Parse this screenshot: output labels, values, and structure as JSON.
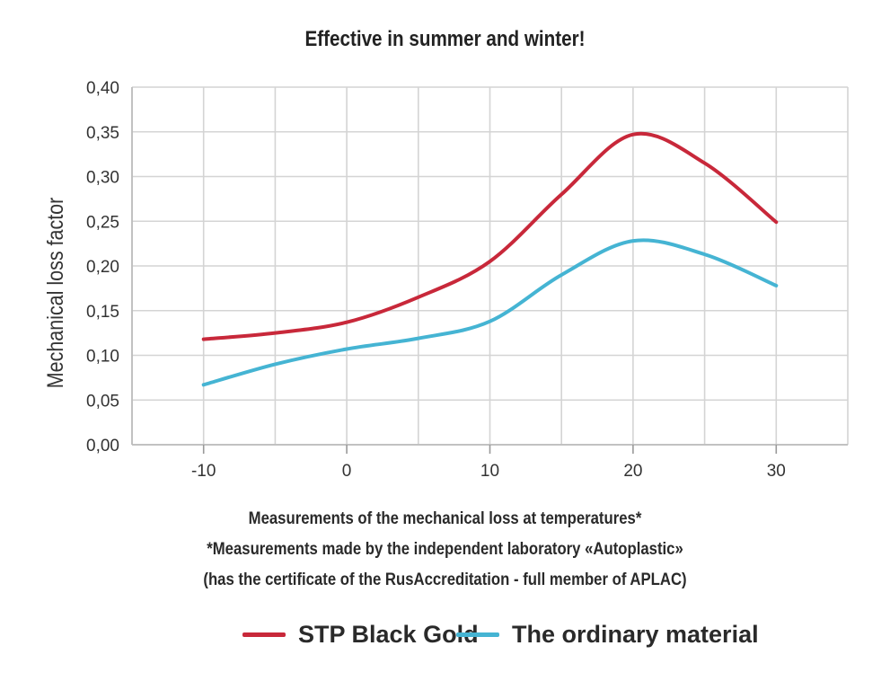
{
  "chart_data": {
    "type": "line",
    "title": "Effective in summer and winter!",
    "xlabel": "Measurements of the mechanical loss at temperatures*",
    "ylabel": "Mechanical loss factor",
    "xlim": [
      -15,
      35
    ],
    "ylim": [
      0,
      0.4
    ],
    "xticks": [
      "-10",
      "0",
      "10",
      "20",
      "30"
    ],
    "yticks": [
      "0,00",
      "0,05",
      "0,10",
      "0,15",
      "0,20",
      "0,25",
      "0,30",
      "0,35",
      "0,40"
    ],
    "grid": true,
    "legend_position": "bottom",
    "series": [
      {
        "name": "STP Black Gold",
        "color": "#c8283a",
        "x": [
          -10,
          -5,
          0,
          5,
          10,
          15,
          20,
          25,
          30
        ],
        "y": [
          0.118,
          0.125,
          0.137,
          0.165,
          0.205,
          0.28,
          0.347,
          0.315,
          0.249
        ]
      },
      {
        "name": "The ordinary material",
        "color": "#45b4d3",
        "x": [
          -10,
          -5,
          0,
          5,
          10,
          15,
          20,
          25,
          30
        ],
        "y": [
          0.067,
          0.09,
          0.107,
          0.119,
          0.138,
          0.19,
          0.228,
          0.213,
          0.178
        ]
      }
    ]
  },
  "notes": {
    "line1": "Measurements of the mechanical loss at temperatures*",
    "line2": "*Measurements made by the independent laboratory «Autoplastic»",
    "line3": "(has the certificate of the RusAccreditation - full member of APLAC)"
  }
}
